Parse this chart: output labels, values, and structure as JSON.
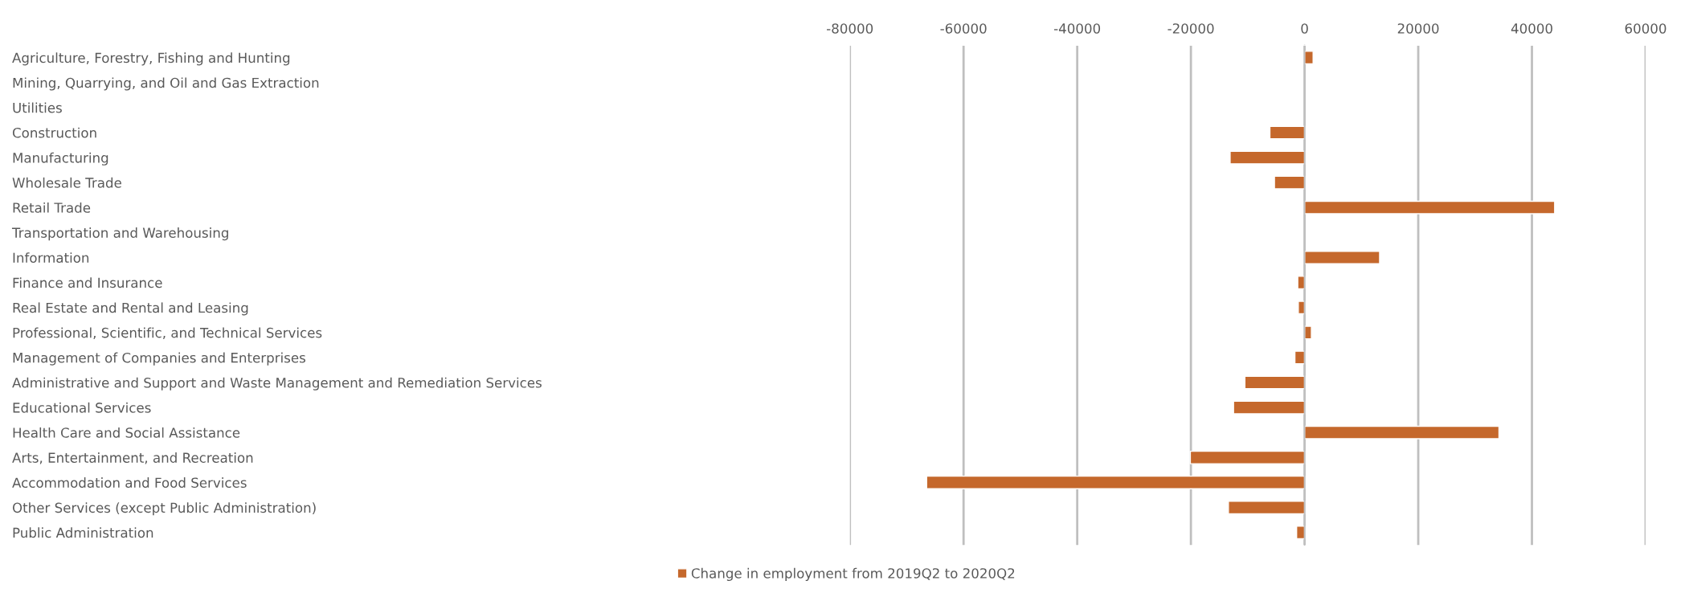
{
  "chart_data": {
    "type": "bar",
    "orientation": "horizontal",
    "categories": [
      "Agriculture, Forestry, Fishing and Hunting",
      "Mining, Quarrying, and Oil and Gas Extraction",
      "Utilities",
      "Construction",
      "Manufacturing",
      "Wholesale Trade",
      "Retail Trade",
      "Transportation and Warehousing",
      "Information",
      "Finance and Insurance",
      "Real Estate and Rental and Leasing",
      "Professional, Scientific, and Technical Services",
      "Management of Companies and Enterprises",
      "Administrative and Support and Waste Management and Remediation Services",
      "Educational Services",
      "Health Care and Social Assistance",
      "Arts, Entertainment, and Recreation",
      "Accommodation and Food Services",
      "Other Services (except Public Administration)",
      "Public Administration"
    ],
    "series": [
      {
        "name": "Change in employment from 2019Q2 to 2020Q2",
        "color": "#c5682c",
        "axis": "x2",
        "values": [
          1500,
          null,
          null,
          -6100,
          -13100,
          -5300,
          44000,
          null,
          13200,
          -1200,
          -1100,
          1200,
          -1700,
          -10500,
          -12500,
          34200,
          -20100,
          -66500,
          -13400,
          -1400
        ]
      }
    ],
    "x2lim": [
      -80000,
      60000
    ],
    "x2ticks": [
      -80000,
      -60000,
      -40000,
      -20000,
      0,
      20000,
      40000,
      60000
    ],
    "grid": "x",
    "legend": "bottom"
  }
}
